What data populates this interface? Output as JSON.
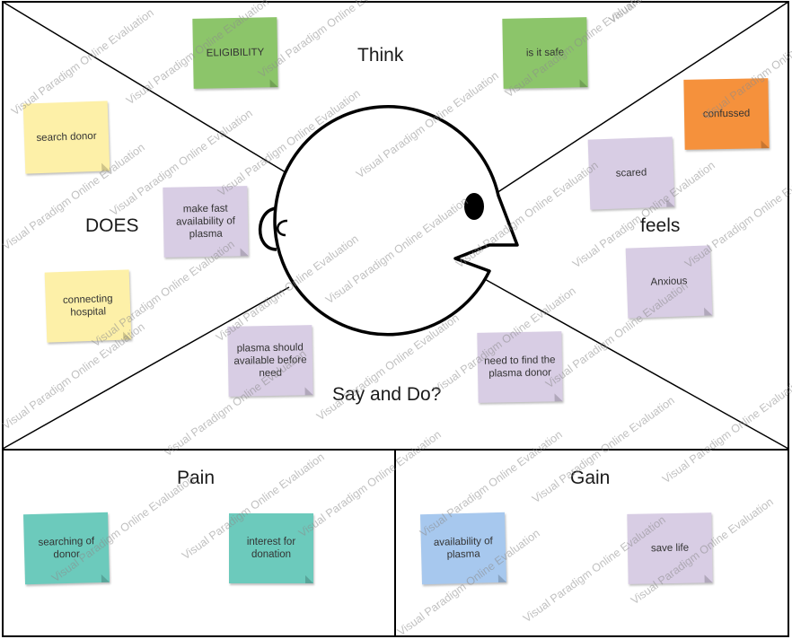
{
  "sections": {
    "think": "Think",
    "does": "DOES",
    "feels": "feels",
    "say_and_do": "Say and Do?",
    "pain": "Pain",
    "gain": "Gain"
  },
  "notes": {
    "eligibility": "ELIGIBILITY",
    "is_it_safe": "is it safe",
    "search_donor": "search donor",
    "make_fast": "make fast availability of plasma",
    "connecting_hospital": "connecting hospital",
    "confussed": "confussed",
    "scared": "scared",
    "anxious": "Anxious",
    "plasma_should": "plasma should available before need",
    "need_to_find": "need to find the plasma donor",
    "searching_of_donor": "searching of donor",
    "interest_for_donation": "interest for donation",
    "availability_of_plasma": "availability of plasma",
    "save_life": "save life"
  },
  "watermark": "Visual Paradigm Online Evaluation",
  "colors": {
    "green": "#8cc56a",
    "orange": "#f5913c",
    "yellow": "#fdf0a8",
    "lavender": "#d8cde4",
    "teal": "#6ccabc",
    "blue": "#a7c8ee",
    "outline": "#000000"
  }
}
